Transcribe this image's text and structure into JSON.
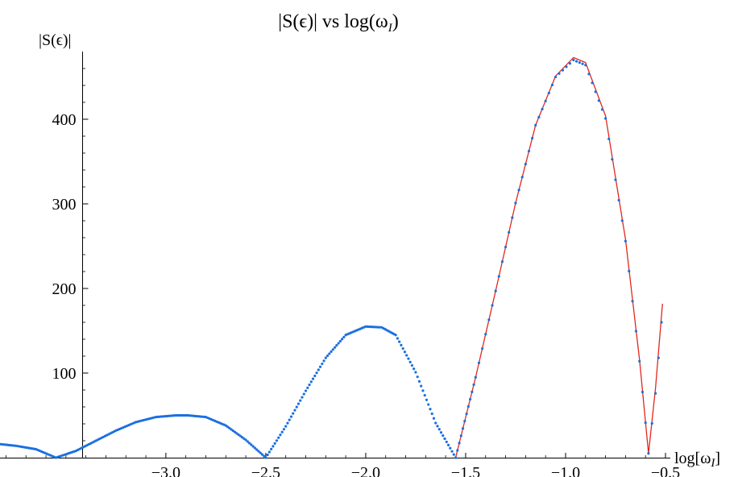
{
  "chart_data": {
    "type": "scatter",
    "title": "|S(ϵ)| vs log(ω",
    "title_sub": "I",
    "title_close": ")",
    "xlabel": "log[ω",
    "xlabel_sub": "I",
    "xlabel_close": "]",
    "ylabel": "|S(ϵ)|",
    "xlim": [
      -3.83,
      -0.5
    ],
    "ylim": [
      0,
      480
    ],
    "x_ticks": [
      -3.0,
      -2.5,
      -2.0,
      -1.5,
      -1.0,
      -0.5
    ],
    "x_tick_labels": [
      "−3.0",
      "−2.5",
      "−2.0",
      "−1.5",
      "−1.0",
      "−0.5"
    ],
    "y_ticks": [
      100,
      200,
      300,
      400
    ],
    "y_tick_labels": [
      "100",
      "200",
      "300",
      "400"
    ],
    "grid": false,
    "series": [
      {
        "kind": "points",
        "color": "#1a6fe0",
        "x": [
          -3.83,
          -3.75,
          -3.65,
          -3.55,
          -3.45,
          -3.35,
          -3.25,
          -3.15,
          -3.05,
          -2.95,
          -2.89,
          -2.8,
          -2.7,
          -2.6,
          -2.5,
          -2.4,
          -2.3,
          -2.2,
          -2.1,
          -2.0,
          -1.92,
          -1.85,
          -1.75,
          -1.65,
          -1.55,
          -1.45,
          -1.35,
          -1.25,
          -1.15,
          -1.05,
          -0.96,
          -0.9,
          -0.8,
          -0.7,
          -0.63,
          -0.585,
          -0.55,
          -0.52
        ],
        "y": [
          16,
          14,
          10,
          0,
          8,
          20,
          32,
          42,
          48,
          50,
          50,
          48,
          38,
          21,
          0,
          37,
          79,
          118,
          145,
          155,
          154,
          145,
          101,
          41,
          0,
          95,
          197,
          301,
          393,
          450,
          470,
          464,
          401,
          256,
          114,
          5,
          76,
          160
        ]
      },
      {
        "kind": "line",
        "color": "#e2271c",
        "x": [
          -1.55,
          -1.45,
          -1.35,
          -1.25,
          -1.15,
          -1.05,
          -0.96,
          -0.9,
          -0.8,
          -0.7,
          -0.63,
          -0.585,
          -0.55,
          -0.515
        ],
        "y": [
          0,
          95,
          197,
          301,
          393,
          451,
          473,
          467,
          404,
          258,
          116,
          5,
          82,
          182
        ]
      }
    ]
  }
}
